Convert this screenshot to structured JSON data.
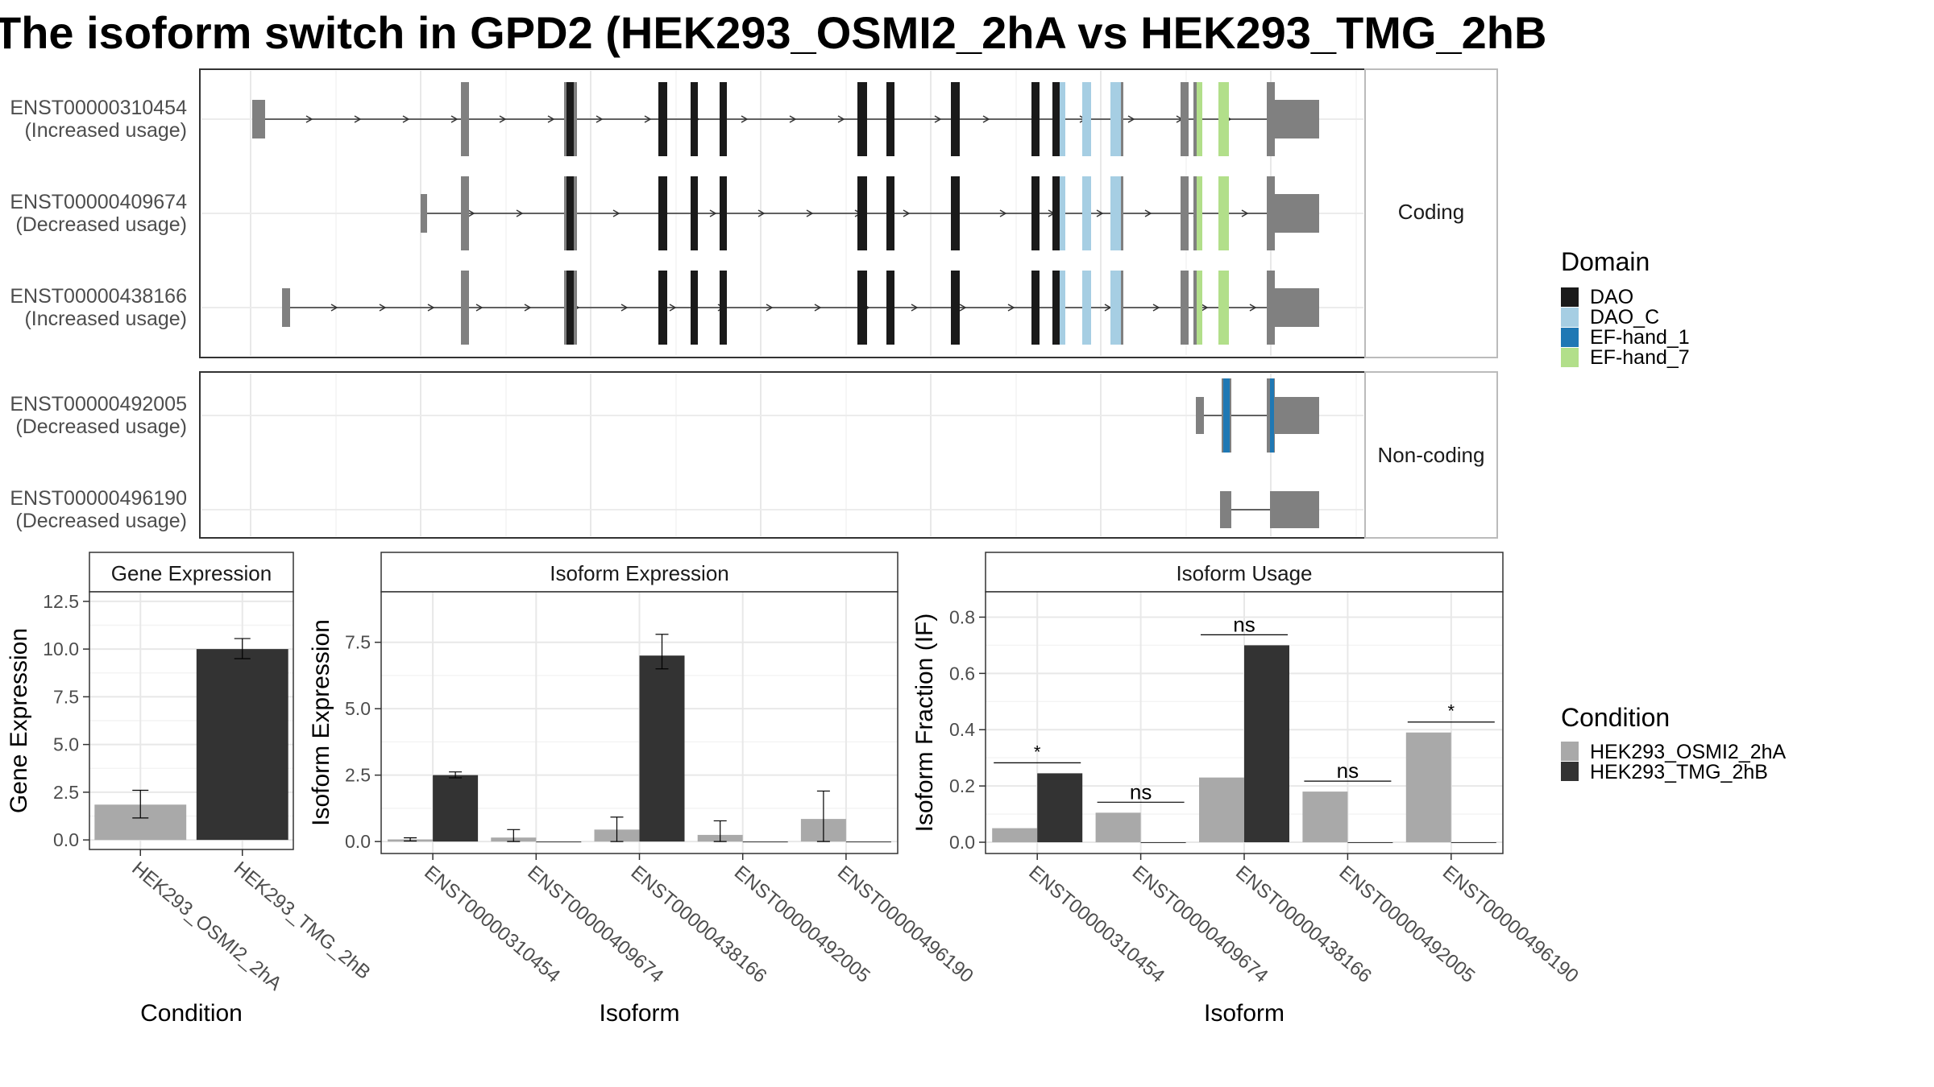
{
  "title": "The isoform switch in GPD2 (HEK293_OSMI2_2hA vs HEK293_TMG_2hB",
  "colors": {
    "cond_a": "#a9a9a9",
    "cond_b": "#333333",
    "exon": "#808080",
    "dao": "#1a1a1a",
    "dao_c": "#a6cee3",
    "ef_hand_1": "#1f78b4",
    "ef_hand_7": "#b2df8a"
  },
  "legends": {
    "domain": {
      "title": "Domain",
      "items": [
        {
          "label": "DAO",
          "color": "#1a1a1a"
        },
        {
          "label": "DAO_C",
          "color": "#a6cee3"
        },
        {
          "label": "EF-hand_1",
          "color": "#1f78b4"
        },
        {
          "label": "EF-hand_7",
          "color": "#b2df8a"
        }
      ]
    },
    "condition": {
      "title": "Condition",
      "items": [
        {
          "label": "HEK293_OSMI2_2hA",
          "color": "#a9a9a9"
        },
        {
          "label": "HEK293_TMG_2hB",
          "color": "#333333"
        }
      ]
    }
  },
  "structure": {
    "coding_label": "Coding",
    "noncoding_label": "Non-coding",
    "coding": [
      {
        "id": "ENST00000310454",
        "note": "(Increased usage)"
      },
      {
        "id": "ENST00000409674",
        "note": "(Decreased usage)"
      },
      {
        "id": "ENST00000438166",
        "note": "(Increased usage)"
      }
    ],
    "noncoding": [
      {
        "id": "ENST00000492005",
        "note": "(Decreased usage)"
      },
      {
        "id": "ENST00000496190",
        "note": "(Decreased usage)"
      }
    ]
  },
  "chart_data": [
    {
      "type": "bar",
      "title": "Gene Expression",
      "xlabel": "Condition",
      "ylabel": "Gene Expression",
      "categories": [
        "HEK293_OSMI2_2hA",
        "HEK293_TMG_2hB"
      ],
      "values": [
        1.85,
        10.0
      ],
      "error_low": [
        1.15,
        9.5
      ],
      "error_high": [
        2.6,
        10.55
      ],
      "ylim": [
        -0.5,
        13.0
      ],
      "yticks": [
        "0.0",
        "2.5",
        "5.0",
        "7.5",
        "10.0",
        "12.5"
      ]
    },
    {
      "type": "bar",
      "title": "Isoform Expression",
      "xlabel": "Isoform",
      "ylabel": "Isoform Expression",
      "categories": [
        "ENST00000310454",
        "ENST00000409674",
        "ENST00000438166",
        "ENST00000492005",
        "ENST00000496190"
      ],
      "series": [
        {
          "name": "HEK293_OSMI2_2hA",
          "values": [
            0.08,
            0.15,
            0.45,
            0.25,
            0.85
          ],
          "err": [
            [
              0.02,
              0.14
            ],
            [
              0.0,
              0.45
            ],
            [
              0.0,
              0.92
            ],
            [
              0.0,
              0.78
            ],
            [
              0.0,
              1.9
            ]
          ]
        },
        {
          "name": "HEK293_TMG_2hB",
          "values": [
            2.5,
            0.0,
            7.0,
            0.0,
            0.0
          ],
          "err": [
            [
              2.4,
              2.62
            ],
            null,
            [
              6.5,
              7.8
            ],
            null,
            null
          ]
        }
      ],
      "ylim": [
        -0.45,
        9.4
      ],
      "yticks": [
        "0.0",
        "2.5",
        "5.0",
        "7.5"
      ]
    },
    {
      "type": "bar",
      "title": "Isoform Usage",
      "xlabel": "Isoform",
      "ylabel": "Isoform Fraction (IF)",
      "categories": [
        "ENST00000310454",
        "ENST00000409674",
        "ENST00000438166",
        "ENST00000492005",
        "ENST00000496190"
      ],
      "series": [
        {
          "name": "HEK293_OSMI2_2hA",
          "values": [
            0.05,
            0.105,
            0.23,
            0.18,
            0.39
          ]
        },
        {
          "name": "HEK293_TMG_2hB",
          "values": [
            0.245,
            0.0,
            0.7,
            0.0,
            0.0
          ]
        }
      ],
      "significance": [
        "*",
        "ns",
        "ns",
        "ns",
        "*"
      ],
      "ylim": [
        -0.04,
        0.89
      ],
      "yticks": [
        "0.0",
        "0.2",
        "0.4",
        "0.6",
        "0.8"
      ]
    }
  ]
}
